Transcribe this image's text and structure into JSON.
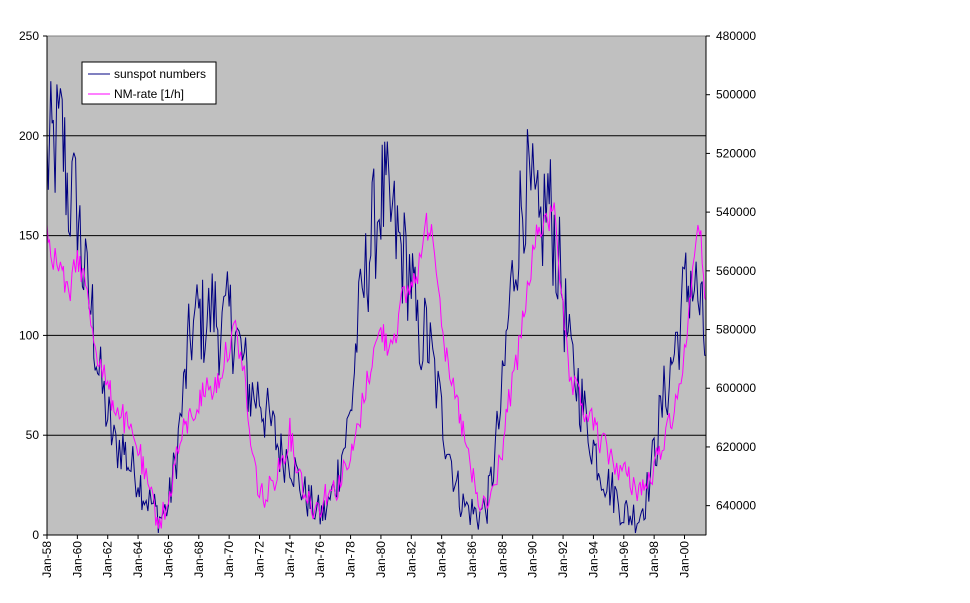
{
  "chart_data": {
    "type": "line",
    "title": "",
    "xlabel": "",
    "x_range": [
      "1958-01",
      "2001-06"
    ],
    "x_tick_labels": [
      "Jan-58",
      "Jan-60",
      "Jan-62",
      "Jan-64",
      "Jan-66",
      "Jan-68",
      "Jan-70",
      "Jan-72",
      "Jan-74",
      "Jan-76",
      "Jan-78",
      "Jan-80",
      "Jan-82",
      "Jan-84",
      "Jan-86",
      "Jan-88",
      "Jan-90",
      "Jan-92",
      "Jan-94",
      "Jan-96",
      "Jan-98",
      "Jan-00"
    ],
    "y_left": {
      "label": "",
      "min": 0,
      "max": 250,
      "ticks": [
        "0",
        "50",
        "100",
        "150",
        "200",
        "250"
      ]
    },
    "y_right": {
      "label": "",
      "min": 480000,
      "max": 650000,
      "reversed": true,
      "ticks": [
        "480000",
        "500000",
        "520000",
        "540000",
        "560000",
        "580000",
        "600000",
        "620000",
        "640000"
      ]
    },
    "grid": "horizontal major gridlines on left axis",
    "plot_background": "#c0c0c0",
    "legend_position": "top-left",
    "series": [
      {
        "name": "sunspot numbers",
        "axis": "left",
        "color": "#000080",
        "x": [
          "1958-01",
          "1958-06",
          "1959-01",
          "1959-06",
          "1960-01",
          "1960-06",
          "1961-01",
          "1961-06",
          "1962-01",
          "1962-06",
          "1963-01",
          "1963-06",
          "1964-01",
          "1964-06",
          "1965-01",
          "1965-06",
          "1966-01",
          "1966-06",
          "1967-01",
          "1967-06",
          "1968-01",
          "1968-06",
          "1969-01",
          "1969-06",
          "1970-01",
          "1970-06",
          "1971-01",
          "1971-06",
          "1972-01",
          "1972-06",
          "1973-01",
          "1973-06",
          "1974-01",
          "1974-06",
          "1975-01",
          "1975-06",
          "1976-01",
          "1976-06",
          "1977-01",
          "1977-06",
          "1978-01",
          "1978-06",
          "1979-01",
          "1979-06",
          "1980-01",
          "1980-06",
          "1981-01",
          "1981-06",
          "1982-01",
          "1982-06",
          "1983-01",
          "1983-06",
          "1984-01",
          "1984-06",
          "1985-01",
          "1985-06",
          "1986-01",
          "1986-06",
          "1987-01",
          "1987-06",
          "1988-01",
          "1988-06",
          "1989-01",
          "1989-06",
          "1990-01",
          "1990-06",
          "1991-01",
          "1991-06",
          "1992-01",
          "1992-06",
          "1993-01",
          "1993-06",
          "1994-01",
          "1994-06",
          "1995-01",
          "1995-06",
          "1996-01",
          "1996-06",
          "1997-01",
          "1997-06",
          "1998-01",
          "1998-06",
          "1999-01",
          "1999-06",
          "2000-01",
          "2000-06",
          "2001-01",
          "2001-06"
        ],
        "y": [
          185,
          195,
          200,
          170,
          165,
          130,
          110,
          80,
          60,
          45,
          45,
          35,
          30,
          20,
          15,
          8,
          15,
          35,
          70,
          100,
          110,
          105,
          115,
          100,
          110,
          100,
          85,
          70,
          70,
          60,
          50,
          40,
          40,
          30,
          20,
          15,
          10,
          12,
          25,
          40,
          60,
          100,
          130,
          150,
          170,
          165,
          150,
          140,
          130,
          100,
          100,
          85,
          60,
          45,
          25,
          15,
          12,
          10,
          15,
          35,
          70,
          110,
          150,
          175,
          165,
          150,
          170,
          150,
          120,
          90,
          75,
          60,
          45,
          35,
          25,
          20,
          12,
          10,
          10,
          18,
          40,
          60,
          80,
          95,
          120,
          130,
          115,
          90
        ]
      },
      {
        "name": "NM-rate [1/h]",
        "axis": "right",
        "color": "#ff00ff",
        "x": [
          "1958-01",
          "1958-06",
          "1959-01",
          "1959-06",
          "1960-01",
          "1960-06",
          "1961-01",
          "1961-06",
          "1962-01",
          "1962-06",
          "1963-01",
          "1963-06",
          "1964-01",
          "1964-06",
          "1965-01",
          "1965-06",
          "1966-01",
          "1966-06",
          "1967-01",
          "1967-06",
          "1968-01",
          "1968-06",
          "1969-01",
          "1969-06",
          "1970-01",
          "1970-06",
          "1971-01",
          "1971-06",
          "1972-01",
          "1972-06",
          "1973-01",
          "1973-06",
          "1974-01",
          "1974-06",
          "1975-01",
          "1975-06",
          "1976-01",
          "1976-06",
          "1977-01",
          "1977-06",
          "1978-01",
          "1978-06",
          "1979-01",
          "1979-06",
          "1980-01",
          "1980-06",
          "1981-01",
          "1981-06",
          "1982-01",
          "1982-06",
          "1983-01",
          "1983-06",
          "1984-01",
          "1984-06",
          "1985-01",
          "1985-06",
          "1986-01",
          "1986-06",
          "1987-01",
          "1987-06",
          "1988-01",
          "1988-06",
          "1989-01",
          "1989-06",
          "1990-01",
          "1990-06",
          "1991-01",
          "1991-06",
          "1992-01",
          "1992-06",
          "1993-01",
          "1993-06",
          "1994-01",
          "1994-06",
          "1995-01",
          "1995-06",
          "1996-01",
          "1996-06",
          "1997-01",
          "1997-06",
          "1998-01",
          "1998-06",
          "1999-01",
          "1999-06",
          "2000-01",
          "2000-06",
          "2001-01",
          "2001-06"
        ],
        "y": [
          545000,
          555000,
          560000,
          570000,
          555000,
          562000,
          580000,
          590000,
          600000,
          605000,
          610000,
          615000,
          620000,
          630000,
          640000,
          645000,
          640000,
          625000,
          615000,
          610000,
          605000,
          600000,
          600000,
          595000,
          585000,
          580000,
          595000,
          620000,
          635000,
          638000,
          630000,
          625000,
          615000,
          625000,
          635000,
          640000,
          640000,
          635000,
          635000,
          630000,
          625000,
          615000,
          600000,
          590000,
          580000,
          585000,
          580000,
          570000,
          565000,
          560000,
          545000,
          545000,
          575000,
          595000,
          605000,
          615000,
          630000,
          640000,
          640000,
          635000,
          620000,
          605000,
          590000,
          575000,
          555000,
          545000,
          545000,
          535000,
          575000,
          598000,
          603000,
          608000,
          612000,
          618000,
          622000,
          626000,
          628000,
          632000,
          634000,
          634000,
          628000,
          620000,
          612000,
          605000,
          590000,
          565000,
          545000,
          570000
        ]
      }
    ]
  }
}
